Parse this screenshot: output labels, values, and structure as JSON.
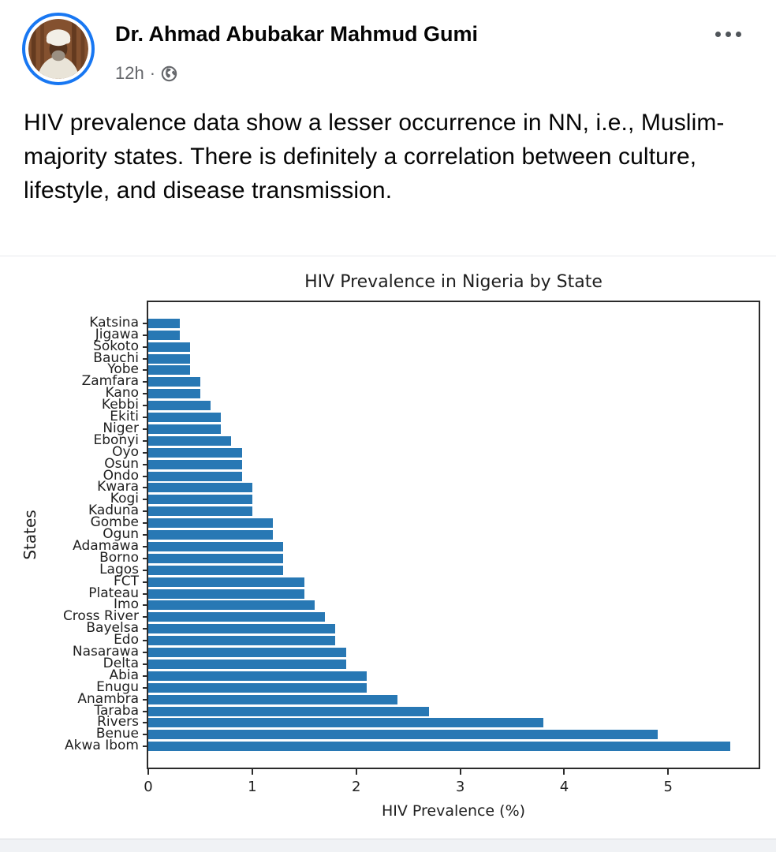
{
  "post": {
    "author": "Dr. Ahmad Abubakar Mahmud Gumi",
    "timestamp": "12h",
    "meta_separator": "·",
    "audience_icon": "globe-icon",
    "menu_icon": "ellipsis-icon",
    "body": "HIV prevalence data show a lesser occurrence in NN, i.e., Muslim-majority states. There is definitely a correlation between culture, lifestyle, and disease transmission."
  },
  "colors": {
    "bar": "#2878b4",
    "story_ring": "#1877f2",
    "muted_text": "#65676b",
    "body_text": "#050505",
    "chart_text": "#1f1f1f",
    "bottom_strip": "#f0f2f5"
  },
  "chart_data": {
    "type": "bar",
    "orientation": "horizontal",
    "title": "HIV Prevalence in Nigeria by State",
    "xlabel": "HIV Prevalence (%)",
    "ylabel": "States",
    "xlim": [
      0,
      5.87
    ],
    "xticks": [
      0,
      1,
      2,
      3,
      4,
      5
    ],
    "grid": false,
    "legend": false,
    "bar_color": "#2878b4",
    "categories": [
      "Katsina",
      "Jigawa",
      "Sokoto",
      "Bauchi",
      "Yobe",
      "Zamfara",
      "Kano",
      "Kebbi",
      "Ekiti",
      "Niger",
      "Ebonyi",
      "Oyo",
      "Osun",
      "Ondo",
      "Kwara",
      "Kogi",
      "Kaduna",
      "Gombe",
      "Ogun",
      "Adamawa",
      "Borno",
      "Lagos",
      "FCT",
      "Plateau",
      "Imo",
      "Cross River",
      "Bayelsa",
      "Edo",
      "Nasarawa",
      "Delta",
      "Abia",
      "Enugu",
      "Anambra",
      "Taraba",
      "Rivers",
      "Benue",
      "Akwa Ibom"
    ],
    "values": [
      0.3,
      0.3,
      0.4,
      0.4,
      0.4,
      0.5,
      0.5,
      0.6,
      0.7,
      0.7,
      0.8,
      0.9,
      0.9,
      0.9,
      1.0,
      1.0,
      1.0,
      1.2,
      1.2,
      1.3,
      1.3,
      1.3,
      1.5,
      1.5,
      1.6,
      1.7,
      1.8,
      1.8,
      1.9,
      1.9,
      2.1,
      2.1,
      2.4,
      2.7,
      3.8,
      4.9,
      5.6
    ]
  }
}
